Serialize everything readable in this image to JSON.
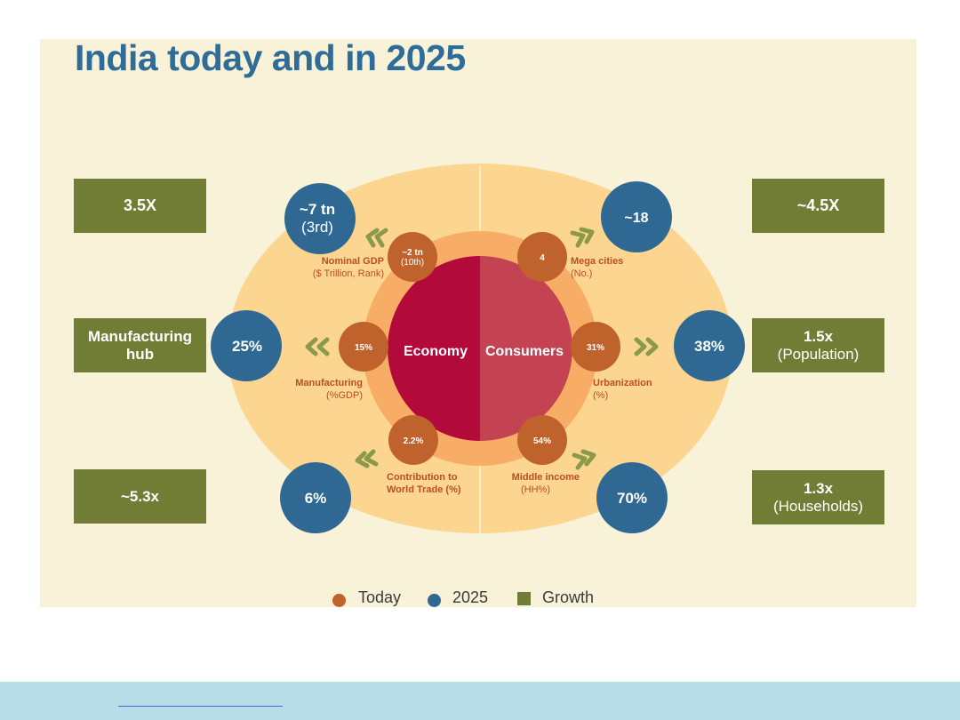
{
  "title": "India today and in 2025",
  "colors": {
    "panel_bg": "#f8f3d8",
    "today": "#c0622b",
    "y2025": "#2f6892",
    "growth": "#717c35",
    "economy": "#b30a3c",
    "consumers": "#c34353",
    "outer_ring": "#fcd691",
    "inner_ring": "#f7ad65",
    "title": "#2f6c97"
  },
  "center": {
    "economy": "Economy",
    "consumers": "Consumers"
  },
  "metrics": [
    {
      "id": "nominal-gdp",
      "label1": "Nominal GDP",
      "label2": "($ Trillion, Rank)",
      "today1": "~2 tn",
      "today2": "(10th)",
      "future1": "~7 tn",
      "future2": "(3rd)",
      "growth1": "3.5X",
      "growth2": ""
    },
    {
      "id": "manufacturing",
      "label1": "Manufacturing",
      "label2": "(%GDP)",
      "today1": "15%",
      "today2": "",
      "future1": "25%",
      "future2": "",
      "growth1": "Manufacturing",
      "growth2": "hub"
    },
    {
      "id": "world-trade",
      "label1": "Contribution to",
      "label2": "World Trade (%)",
      "today1": "2.2%",
      "today2": "",
      "future1": "6%",
      "future2": "",
      "growth1": "~5.3x",
      "growth2": ""
    },
    {
      "id": "mega-cities",
      "label1": "Mega cities",
      "label2": "(No.)",
      "today1": "4",
      "today2": "",
      "future1": "~18",
      "future2": "",
      "growth1": "~4.5X",
      "growth2": ""
    },
    {
      "id": "urbanization",
      "label1": "Urbanization",
      "label2": "(%)",
      "today1": "31%",
      "today2": "",
      "future1": "38%",
      "future2": "",
      "growth1": "1.5x",
      "growth2": "(Population)"
    },
    {
      "id": "middle-income",
      "label1": "Middle income",
      "label2": "(HH%)",
      "today1": "54%",
      "today2": "",
      "future1": "70%",
      "future2": "",
      "growth1": "1.3x",
      "growth2": "(Households)"
    }
  ],
  "legend": {
    "today": "Today",
    "y2025": "2025",
    "growth": "Growth"
  }
}
